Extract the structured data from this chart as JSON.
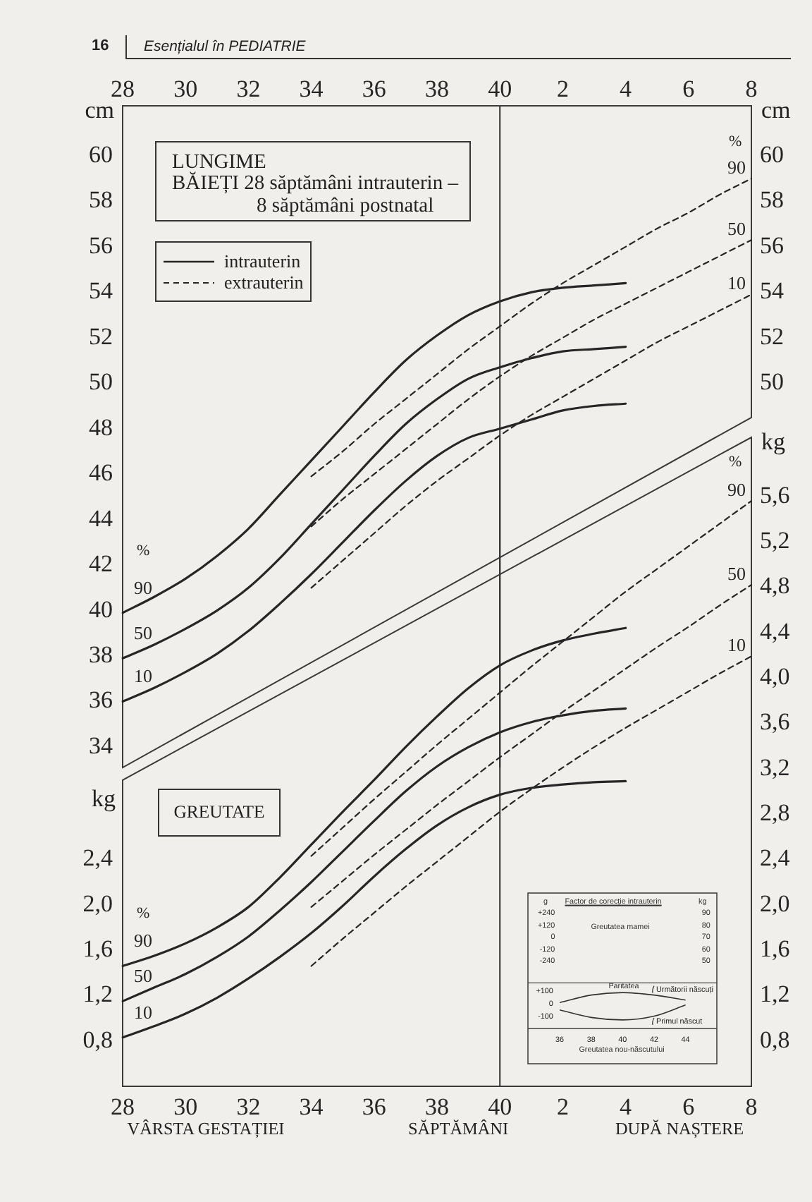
{
  "chart_data": [
    {
      "type": "line",
      "title": "LUNGIME",
      "subtitle": "BĂIEȚI 28 săptămâni intrauterin – 8 săptămâni postnatal",
      "ylabel": "cm",
      "y2label": "cm",
      "categories": [
        "28",
        null,
        "30",
        null,
        "32",
        null,
        "34",
        null,
        "36",
        null,
        "38",
        null,
        "40",
        null,
        "2",
        null,
        "4",
        null,
        "6",
        null,
        "8"
      ],
      "ylim": [
        33.1,
        62.2
      ],
      "yticks": [
        34,
        36,
        38,
        40,
        42,
        44,
        46,
        48,
        50,
        52,
        54,
        56,
        58,
        60
      ],
      "y2lim": [
        33.1,
        62.2
      ],
      "y2ticks": [
        50,
        52,
        54,
        56,
        58,
        60
      ],
      "ref_lines": [
        {
          "axis": "x",
          "value": "40",
          "color": "#333333"
        }
      ],
      "annotations": [
        "16",
        "Esențialul în PEDIATRIE",
        "intrauterin",
        "extrauterin",
        "%",
        "%"
      ],
      "series": [
        {
          "name": "90",
          "color": "#262626",
          "line_style": "solid",
          "values": [
            39.9,
            40.6,
            41.4,
            42.4,
            43.6,
            45.1,
            46.6,
            48.1,
            49.6,
            51.0,
            52.1,
            53.0,
            53.6,
            54.0,
            54.2,
            54.3,
            54.4,
            null,
            null,
            null,
            null
          ]
        },
        {
          "name": "50",
          "color": "#262626",
          "line_style": "solid",
          "values": [
            37.9,
            38.5,
            39.2,
            40.0,
            41.0,
            42.3,
            43.8,
            45.3,
            46.8,
            48.2,
            49.3,
            50.2,
            50.7,
            51.1,
            51.4,
            51.5,
            51.6,
            null,
            null,
            null,
            null
          ]
        },
        {
          "name": "10",
          "color": "#262626",
          "line_style": "solid",
          "values": [
            36.0,
            36.6,
            37.3,
            38.1,
            39.1,
            40.3,
            41.6,
            43.0,
            44.4,
            45.7,
            46.8,
            47.6,
            48.0,
            48.4,
            48.8,
            49.0,
            49.1,
            null,
            null,
            null,
            null
          ]
        },
        {
          "name": "90",
          "color": "#262626",
          "line_style": "dashed",
          "values": [
            null,
            null,
            null,
            null,
            null,
            null,
            45.9,
            47.0,
            48.2,
            49.3,
            50.4,
            51.5,
            52.5,
            53.5,
            54.4,
            55.2,
            56.0,
            56.8,
            57.5,
            58.3,
            59.0
          ]
        },
        {
          "name": "50",
          "color": "#262626",
          "line_style": "dashed",
          "values": [
            null,
            null,
            null,
            null,
            null,
            null,
            43.7,
            44.9,
            46.0,
            47.1,
            48.2,
            49.3,
            50.3,
            51.2,
            52.0,
            52.8,
            53.5,
            54.2,
            54.9,
            55.6,
            56.3
          ]
        },
        {
          "name": "10",
          "color": "#262626",
          "line_style": "dashed",
          "values": [
            null,
            null,
            null,
            null,
            null,
            null,
            41.0,
            42.2,
            43.4,
            44.6,
            45.7,
            46.7,
            47.7,
            48.6,
            49.4,
            50.2,
            51.0,
            51.8,
            52.5,
            53.2,
            53.9
          ]
        }
      ]
    },
    {
      "type": "line",
      "title": "GREUTATE",
      "xlabel": "VÂRSTA GESTAȚIEI",
      "ylabel": "kg",
      "y2label": "kg",
      "categories": [
        "28",
        null,
        "30",
        null,
        "32",
        null,
        "34",
        null,
        "36",
        null,
        "38",
        null,
        "40",
        null,
        "2",
        null,
        "4",
        null,
        "6",
        null,
        "8"
      ],
      "ylim": [
        0.4,
        6.12
      ],
      "yticks": [
        {
          "value": 0.8,
          "label": "0,8"
        },
        {
          "value": 1.2,
          "label": "1,2"
        },
        {
          "value": 1.6,
          "label": "1,6"
        },
        {
          "value": 2.0,
          "label": "2,0"
        },
        {
          "value": 2.4,
          "label": "2,4"
        }
      ],
      "y2lim": [
        0.4,
        6.12
      ],
      "y2ticks": [
        {
          "value": 0.8,
          "label": "0,8"
        },
        {
          "value": 1.2,
          "label": "1,2"
        },
        {
          "value": 1.6,
          "label": "1,6"
        },
        {
          "value": 2.0,
          "label": "2,0"
        },
        {
          "value": 2.4,
          "label": "2,4"
        },
        {
          "value": 2.8,
          "label": "2,8"
        },
        {
          "value": 3.2,
          "label": "3,2"
        },
        {
          "value": 3.6,
          "label": "3,6"
        },
        {
          "value": 4.0,
          "label": "4,0"
        },
        {
          "value": 4.4,
          "label": "4,4"
        },
        {
          "value": 4.8,
          "label": "4,8"
        },
        {
          "value": 5.2,
          "label": "5,2"
        },
        {
          "value": 5.6,
          "label": "5,6"
        }
      ],
      "ref_lines": [
        {
          "axis": "x",
          "value": "40",
          "color": "#333333"
        }
      ],
      "annotations": [
        "SĂPTĂMÂNI",
        "DUPĂ NAȘTERE",
        "%",
        "%"
      ],
      "series": [
        {
          "name": "90",
          "color": "#262626",
          "line_style": "solid",
          "values": [
            1.46,
            1.55,
            1.66,
            1.8,
            1.98,
            2.24,
            2.53,
            2.82,
            3.1,
            3.39,
            3.66,
            3.91,
            4.11,
            4.24,
            4.33,
            4.39,
            4.44,
            null,
            null,
            null,
            null
          ]
        },
        {
          "name": "50",
          "color": "#262626",
          "line_style": "solid",
          "values": [
            1.15,
            1.27,
            1.39,
            1.54,
            1.72,
            1.95,
            2.2,
            2.47,
            2.74,
            3.0,
            3.22,
            3.39,
            3.52,
            3.61,
            3.67,
            3.71,
            3.73,
            null,
            null,
            null,
            null
          ]
        },
        {
          "name": "10",
          "color": "#262626",
          "line_style": "solid",
          "values": [
            0.83,
            0.93,
            1.04,
            1.18,
            1.35,
            1.54,
            1.75,
            1.99,
            2.25,
            2.49,
            2.7,
            2.86,
            2.97,
            3.03,
            3.06,
            3.08,
            3.09,
            null,
            null,
            null,
            null
          ]
        },
        {
          "name": "90",
          "color": "#262626",
          "line_style": "dashed",
          "values": [
            null,
            null,
            null,
            null,
            null,
            null,
            2.43,
            2.68,
            2.93,
            3.17,
            3.41,
            3.64,
            3.87,
            4.1,
            4.32,
            4.54,
            4.76,
            4.96,
            5.16,
            5.36,
            5.56
          ]
        },
        {
          "name": "50",
          "color": "#262626",
          "line_style": "dashed",
          "values": [
            null,
            null,
            null,
            null,
            null,
            null,
            1.98,
            2.21,
            2.44,
            2.66,
            2.88,
            3.09,
            3.3,
            3.5,
            3.7,
            3.89,
            4.08,
            4.27,
            4.45,
            4.64,
            4.82
          ]
        },
        {
          "name": "10",
          "color": "#262626",
          "line_style": "dashed",
          "values": [
            null,
            null,
            null,
            null,
            null,
            null,
            1.46,
            1.7,
            1.93,
            2.16,
            2.38,
            2.6,
            2.82,
            3.02,
            3.21,
            3.39,
            3.56,
            3.72,
            3.88,
            4.04,
            4.19
          ]
        }
      ]
    },
    {
      "type": "line",
      "title": "Factor de corecție intrauterin",
      "xlabel": "Greutatea nou-născutului",
      "xlim": [
        36,
        44
      ],
      "xticks": [
        36,
        38,
        40,
        42,
        44
      ],
      "ylim": [
        -200,
        168
      ],
      "yticks": [
        {
          "value": 100,
          "label": "+100"
        },
        0,
        {
          "value": -100,
          "label": "-100"
        }
      ],
      "legend": "right",
      "annotations": [
        "g",
        "kg",
        "+240",
        "+120",
        "0",
        "-120",
        "-240",
        "90",
        "80",
        "70",
        "60",
        "50",
        "Greutatea mamei",
        "Paritatea"
      ],
      "series": [
        {
          "name": "Următorii născuți",
          "color": "#333333",
          "line_style": "solid",
          "x": [
            36,
            38,
            40,
            42,
            44
          ],
          "values": [
            10,
            70,
            90,
            70,
            30
          ]
        },
        {
          "name": "Primul născut",
          "color": "#333333",
          "line_style": "solid",
          "x": [
            36,
            38,
            40,
            42,
            44
          ],
          "values": [
            -50,
            -110,
            -130,
            -100,
            -10
          ]
        }
      ]
    }
  ]
}
